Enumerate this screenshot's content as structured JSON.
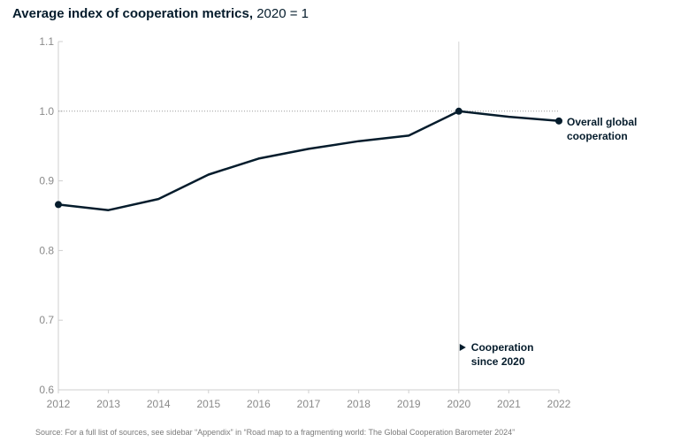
{
  "title": "Average index of cooperation metrics,",
  "title_suffix": "2020 = 1",
  "source": "Source: For a full list of sources, see sidebar “Appendix” in “Road map to a fragmenting world: The Global Cooperation Barometer 2024”",
  "annotations": {
    "series_label_line1": "Overall global",
    "series_label_line2": "cooperation",
    "since_line1": "Cooperation",
    "since_line2": "since 2020"
  },
  "colors": {
    "line": "#051c2c",
    "axis": "#cfcfcf",
    "tick_text": "#8a8a8a"
  },
  "chart_data": {
    "type": "line",
    "title": "Average index of cooperation metrics, 2020 = 1",
    "xlabel": "",
    "ylabel": "",
    "x": [
      2012,
      2013,
      2014,
      2015,
      2016,
      2017,
      2018,
      2019,
      2020,
      2021,
      2022
    ],
    "series": [
      {
        "name": "Overall global cooperation",
        "values": [
          0.866,
          0.858,
          0.874,
          0.909,
          0.932,
          0.946,
          0.957,
          0.965,
          1.0,
          0.992,
          0.986
        ]
      }
    ],
    "ylim": [
      0.6,
      1.1
    ],
    "yticks": [
      0.6,
      0.7,
      0.8,
      0.9,
      1.0,
      1.1
    ],
    "ytick_labels": [
      "0.6",
      "0.7",
      "0.8",
      "0.9",
      "1.0",
      "1.1"
    ],
    "xtick_labels": [
      "2012",
      "2013",
      "2014",
      "2015",
      "2016",
      "2017",
      "2018",
      "2019",
      "2020",
      "2021",
      "2022"
    ],
    "reference_line_y": 1.0,
    "marker_line_x": 2020,
    "markers_at": [
      2012,
      2020,
      2022
    ],
    "grid": false,
    "legend": "none"
  }
}
